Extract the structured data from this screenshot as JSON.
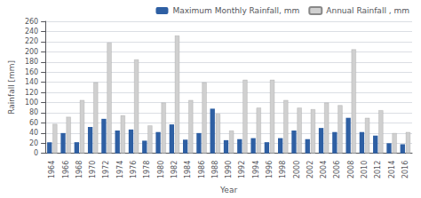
{
  "chart_data": {
    "type": "bar",
    "xlabel": "Year",
    "ylabel": "Rainfall [mm]",
    "categories": [
      "1964",
      "1966",
      "1968",
      "1970",
      "1972",
      "1974",
      "1976",
      "1978",
      "1980",
      "1982",
      "1984",
      "1986",
      "1988",
      "1990",
      "1992",
      "1994",
      "1996",
      "1998",
      "2000",
      "2002",
      "2004",
      "2006",
      "2008",
      "2010",
      "2012",
      "2014",
      "2016"
    ],
    "series": [
      {
        "name": "Maximum Monthly Rainfall, mm",
        "color": "#2e5fa3",
        "values": [
          22,
          40,
          22,
          52,
          68,
          45,
          47,
          25,
          42,
          57,
          27,
          40,
          88,
          26,
          28,
          30,
          22,
          30,
          45,
          28,
          50,
          42,
          70,
          42,
          35,
          20,
          18
        ]
      },
      {
        "name": "Annual Rainfall , mm",
        "color": "#d0d0d0",
        "values": [
          58,
          72,
          105,
          140,
          218,
          75,
          185,
          55,
          100,
          232,
          105,
          140,
          78,
          45,
          145,
          90,
          145,
          105,
          90,
          87,
          100,
          95,
          205,
          70,
          85,
          40,
          42
        ]
      }
    ],
    "ylim": [
      0,
      260
    ],
    "yticks": [
      0,
      20,
      40,
      60,
      80,
      100,
      120,
      140,
      160,
      180,
      200,
      220,
      240,
      260
    ],
    "grid": true,
    "legend": "upper right"
  }
}
